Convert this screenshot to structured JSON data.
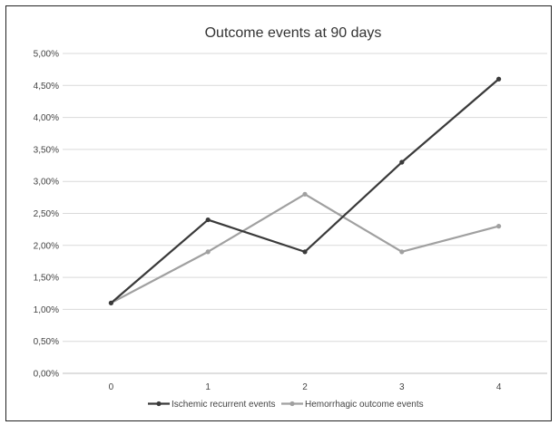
{
  "chart_data": {
    "type": "line",
    "title": "Outcome events at 90 days",
    "xlabel": "",
    "ylabel": "",
    "categories": [
      "0",
      "1",
      "2",
      "3",
      "4"
    ],
    "y_ticks": [
      "0,00%",
      "0,50%",
      "1,00%",
      "1,50%",
      "2,00%",
      "2,50%",
      "3,00%",
      "3,50%",
      "4,00%",
      "4,50%",
      "5,00%"
    ],
    "ylim": [
      0,
      5
    ],
    "grid": true,
    "legend_position": "bottom",
    "series": [
      {
        "name": "Ischemic recurrent events",
        "color": "#3a3a3a",
        "values": [
          1.1,
          2.4,
          1.9,
          3.3,
          4.6
        ]
      },
      {
        "name": "Hemorrhagic outcome events",
        "color": "#a0a0a0",
        "values": [
          1.1,
          1.9,
          2.8,
          1.9,
          2.3
        ]
      }
    ]
  }
}
